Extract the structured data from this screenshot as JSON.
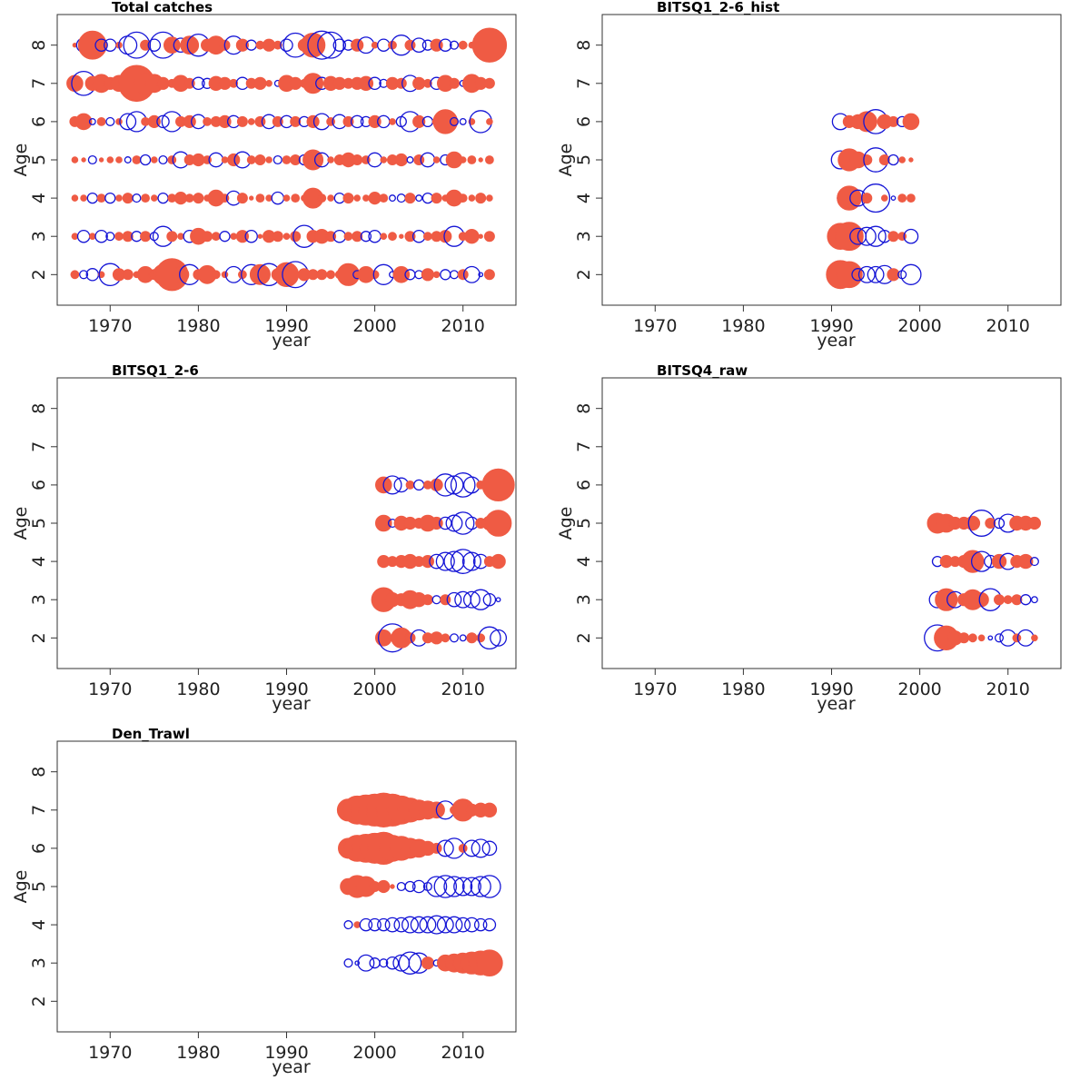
{
  "colors": {
    "positive": "#ef5b44",
    "negative": "#1515d6"
  },
  "chart_data": [
    {
      "type": "scatter",
      "title": "Total catches",
      "xlabel": "year",
      "ylabel": "Age",
      "xlim": [
        1964,
        2016
      ],
      "ylim": [
        1.2,
        8.8
      ],
      "xticks": [
        1970,
        1980,
        1990,
        2000,
        2010
      ],
      "yticks": [
        2,
        3,
        4,
        5,
        6,
        7,
        8
      ],
      "ages": [
        2,
        3,
        4,
        5,
        6,
        7,
        8
      ],
      "year_start": 1966,
      "values": [
        [
          0.4,
          -0.4,
          -0.6,
          0.3,
          -1.1,
          0.6,
          0.5,
          0.3,
          0.8,
          0.5,
          1.0,
          1.6,
          0.8,
          -1.0,
          0.5,
          0.9,
          0.4,
          0.3,
          -0.8,
          0.4,
          -1.0,
          1.0,
          -1.1,
          0.6,
          1.2,
          -1.3,
          0.6,
          0.5,
          0.5,
          0.4,
          0.4,
          1.1,
          -0.4,
          0.8,
          0.4,
          -1.0,
          -0.3,
          0.8,
          -0.5,
          -0.4,
          0.6,
          0.3,
          -0.5,
          -0.4,
          0.5,
          -0.8,
          -0.2,
          0.5
        ],
        [
          0.3,
          -0.6,
          0.3,
          -0.6,
          -0.4,
          0.4,
          0.5,
          -0.5,
          0.5,
          -0.4,
          -1.0,
          0.5,
          0.3,
          -0.6,
          0.8,
          0.5,
          0.4,
          -0.5,
          0.3,
          0.6,
          -0.6,
          0.2,
          0.6,
          0.5,
          0.3,
          0.5,
          -1.1,
          0.6,
          0.7,
          0.5,
          -0.6,
          0.4,
          0.5,
          -0.5,
          -0.6,
          0.3,
          0.4,
          0.2,
          0.5,
          -0.6,
          0.4,
          0.5,
          0.6,
          -1.0,
          0.4,
          0.7,
          0.2,
          0.5
        ],
        [
          0.3,
          0.3,
          -0.5,
          0.4,
          -0.5,
          0.3,
          0.5,
          -0.4,
          0.4,
          0.3,
          -0.5,
          0.4,
          0.6,
          0.4,
          0.5,
          0.3,
          0.8,
          0.4,
          -0.7,
          0.5,
          0.2,
          0.4,
          0.3,
          -0.6,
          0.3,
          0.4,
          0.3,
          1.0,
          0.4,
          0.3,
          -0.5,
          0.5,
          0.3,
          0.3,
          0.6,
          0.4,
          -0.3,
          -0.4,
          0.5,
          -0.3,
          -0.5,
          0.5,
          0.3,
          0.8,
          0.4,
          0.3,
          0.5,
          0.3
        ],
        [
          0.3,
          0.2,
          -0.4,
          0.2,
          0.3,
          0.3,
          -0.3,
          0.4,
          -0.5,
          0.3,
          -0.4,
          0.4,
          -0.8,
          0.5,
          0.6,
          0.4,
          -0.7,
          0.3,
          0.6,
          -0.8,
          0.4,
          0.5,
          0.3,
          -0.4,
          0.4,
          0.5,
          -0.5,
          1.0,
          -0.7,
          0.3,
          0.5,
          0.7,
          0.5,
          0.4,
          -0.7,
          0.3,
          0.5,
          0.6,
          -0.3,
          0.5,
          -0.7,
          0.3,
          -0.5,
          0.8,
          0.3,
          0.4,
          0.2,
          0.4
        ],
        [
          0.5,
          0.8,
          -0.3,
          0.4,
          -0.4,
          0.3,
          -0.8,
          -1.0,
          0.4,
          0.6,
          -0.6,
          -1.0,
          0.5,
          0.6,
          -0.7,
          0.4,
          0.5,
          0.6,
          -0.6,
          0.5,
          0.3,
          0.5,
          -0.7,
          0.5,
          -0.6,
          0.5,
          -0.5,
          0.6,
          -0.8,
          0.4,
          -0.7,
          0.5,
          -0.6,
          -0.5,
          0.6,
          -0.6,
          0.3,
          -0.5,
          -1.0,
          0.6,
          -0.5,
          0.4,
          1.2,
          -0.4,
          -0.3,
          0.3,
          -1.1,
          0.3
        ],
        [
          0.8,
          -1.2,
          0.7,
          0.9,
          0.6,
          0.8,
          0.9,
          1.8,
          1.1,
          0.9,
          0.6,
          0.4,
          0.8,
          0.5,
          -0.6,
          -0.5,
          0.7,
          0.6,
          0.4,
          -0.6,
          0.5,
          0.6,
          0.3,
          -0.3,
          0.8,
          0.6,
          0.4,
          1.0,
          -0.6,
          0.7,
          0.6,
          0.5,
          0.6,
          0.7,
          -0.6,
          -0.4,
          0.6,
          0.5,
          -0.8,
          0.6,
          0.4,
          -0.6,
          0.8,
          0.5,
          -0.3,
          0.9,
          0.6,
          0.5
        ],
        [
          0.2,
          -0.7,
          1.4,
          -0.6,
          -0.6,
          0.3,
          -0.9,
          -1.3,
          0.5,
          -0.6,
          -1.3,
          0.8,
          -0.7,
          0.9,
          -1.1,
          0.6,
          0.9,
          0.5,
          -0.9,
          0.6,
          -0.5,
          0.4,
          0.6,
          0.4,
          -0.6,
          -1.2,
          0.6,
          1.2,
          -1.4,
          -1.3,
          -0.6,
          -0.5,
          0.6,
          -0.8,
          0.3,
          -0.6,
          0.4,
          -1.0,
          0.5,
          -0.7,
          -0.5,
          0.6,
          -0.6,
          -0.4,
          0.4,
          0.3,
          0.6,
          1.7
        ]
      ]
    },
    {
      "type": "scatter",
      "title": "BITSQ1_2-6_hist",
      "xlabel": "year",
      "ylabel": "Age",
      "xlim": [
        1964,
        2016
      ],
      "ylim": [
        1.2,
        8.8
      ],
      "xticks": [
        1970,
        1980,
        1990,
        2000,
        2010
      ],
      "yticks": [
        2,
        3,
        4,
        5,
        6,
        7,
        8
      ],
      "ages": [
        2,
        3,
        4,
        5,
        6
      ],
      "year_start": 1991,
      "values": [
        [
          1.4,
          1.3,
          -0.6,
          -0.8,
          -0.8,
          -0.9,
          0.6,
          -0.4,
          -1.0
        ],
        [
          1.3,
          1.4,
          -0.8,
          -0.9,
          -1.0,
          -0.6,
          0.5,
          0.4,
          -0.7
        ],
        [
          -0.3,
          1.2,
          -0.8,
          0.5,
          -1.4,
          0.3,
          -0.2,
          0.4,
          0.4
        ],
        [
          -0.9,
          1.1,
          0.8,
          0.5,
          -1.2,
          0.5,
          -0.5,
          0.3,
          0.2
        ],
        [
          -0.8,
          0.6,
          0.7,
          1.0,
          -1.2,
          0.7,
          0.5,
          -0.5,
          0.8
        ]
      ]
    },
    {
      "type": "scatter",
      "title": "BITSQ1_2-6",
      "xlabel": "year",
      "ylabel": "Age",
      "xlim": [
        1964,
        2016
      ],
      "ylim": [
        1.2,
        8.8
      ],
      "xticks": [
        1970,
        1980,
        1990,
        2000,
        2010
      ],
      "yticks": [
        2,
        3,
        4,
        5,
        6,
        7,
        8
      ],
      "ages": [
        2,
        3,
        4,
        5,
        6
      ],
      "year_start": 2001,
      "values": [
        [
          0.8,
          -1.4,
          1.0,
          0.5,
          -0.8,
          0.5,
          0.6,
          0.4,
          -0.4,
          -0.3,
          0.5,
          0.4,
          -1.1,
          -0.8
        ],
        [
          1.2,
          0.7,
          0.6,
          0.9,
          0.7,
          0.5,
          -0.4,
          0.5,
          -0.7,
          -0.8,
          -0.8,
          -1.0,
          -0.6,
          -0.2
        ],
        [
          0.6,
          0.5,
          0.6,
          0.7,
          0.5,
          0.6,
          -0.7,
          -0.9,
          -1.0,
          -1.2,
          -0.9,
          -0.7,
          0.5,
          0.7
        ],
        [
          0.8,
          -0.4,
          0.7,
          0.6,
          0.5,
          0.8,
          0.6,
          -0.6,
          -0.8,
          -1.1,
          -0.6,
          0.5,
          0.7,
          1.3
        ],
        [
          0.8,
          -0.9,
          -0.7,
          0.4,
          -0.5,
          0.4,
          0.6,
          -1.1,
          -0.9,
          -1.2,
          -0.8,
          0.4,
          0.5,
          1.6
        ]
      ]
    },
    {
      "type": "scatter",
      "title": "BITSQ4_raw",
      "xlabel": "year",
      "ylabel": "Age",
      "xlim": [
        1964,
        2016
      ],
      "ylim": [
        1.2,
        8.8
      ],
      "xticks": [
        1970,
        1980,
        1990,
        2000,
        2010
      ],
      "yticks": [
        2,
        3,
        4,
        5,
        6,
        7,
        8
      ],
      "ages": [
        2,
        3,
        4,
        5
      ],
      "year_start": 2002,
      "values": [
        [
          -1.3,
          1.2,
          0.7,
          0.5,
          0.4,
          0.3,
          -0.2,
          -0.4,
          -0.8,
          0.4,
          -0.8,
          0.3
        ],
        [
          -0.8,
          1.1,
          -0.8,
          0.6,
          1.0,
          0.7,
          -1.1,
          0.5,
          0.4,
          0.5,
          -0.5,
          -0.3
        ],
        [
          -0.5,
          0.6,
          0.5,
          0.6,
          1.1,
          -1.0,
          -0.6,
          0.7,
          -0.8,
          0.6,
          0.7,
          -0.4
        ],
        [
          1.0,
          0.9,
          0.6,
          0.6,
          0.7,
          -1.3,
          0.5,
          -0.5,
          -0.9,
          0.7,
          0.7,
          0.6
        ]
      ]
    },
    {
      "type": "scatter",
      "title": "Den_Trawl",
      "xlabel": "year",
      "ylabel": "Age",
      "xlim": [
        1964,
        2016
      ],
      "ylim": [
        1.2,
        8.8
      ],
      "xticks": [
        1970,
        1980,
        1990,
        2000,
        2010
      ],
      "yticks": [
        2,
        3,
        4,
        5,
        6,
        7,
        8
      ],
      "ages": [
        3,
        4,
        5,
        6,
        7
      ],
      "year_start": 1997,
      "values": [
        [
          -0.4,
          -0.2,
          -0.8,
          -0.5,
          -0.4,
          -0.6,
          -0.8,
          -1.1,
          -1.0,
          0.6,
          -0.3,
          0.8,
          0.9,
          1.0,
          1.1,
          1.2,
          1.3
        ],
        [
          -0.4,
          0.3,
          -0.6,
          -0.6,
          -0.6,
          -0.7,
          -0.7,
          -0.8,
          -0.8,
          -0.8,
          -0.9,
          -0.8,
          -0.8,
          -0.7,
          -0.7,
          -0.6,
          -0.6
        ],
        [
          0.8,
          1.1,
          1.0,
          0.5,
          0.6,
          0.2,
          -0.4,
          -0.5,
          -0.6,
          -0.4,
          -1.0,
          -1.1,
          -1.0,
          -0.9,
          -0.9,
          -1.0,
          -1.1
        ],
        [
          1.0,
          1.3,
          1.4,
          1.5,
          1.6,
          1.3,
          1.2,
          1.0,
          0.9,
          0.7,
          0.5,
          -0.8,
          -1.0,
          0.4,
          -0.8,
          -0.9,
          -0.7
        ],
        [
          1.1,
          1.4,
          1.5,
          1.6,
          1.7,
          1.6,
          1.4,
          1.2,
          1.0,
          0.9,
          0.8,
          -0.9,
          0.4,
          1.1,
          0.6,
          0.7,
          0.7
        ]
      ]
    }
  ]
}
